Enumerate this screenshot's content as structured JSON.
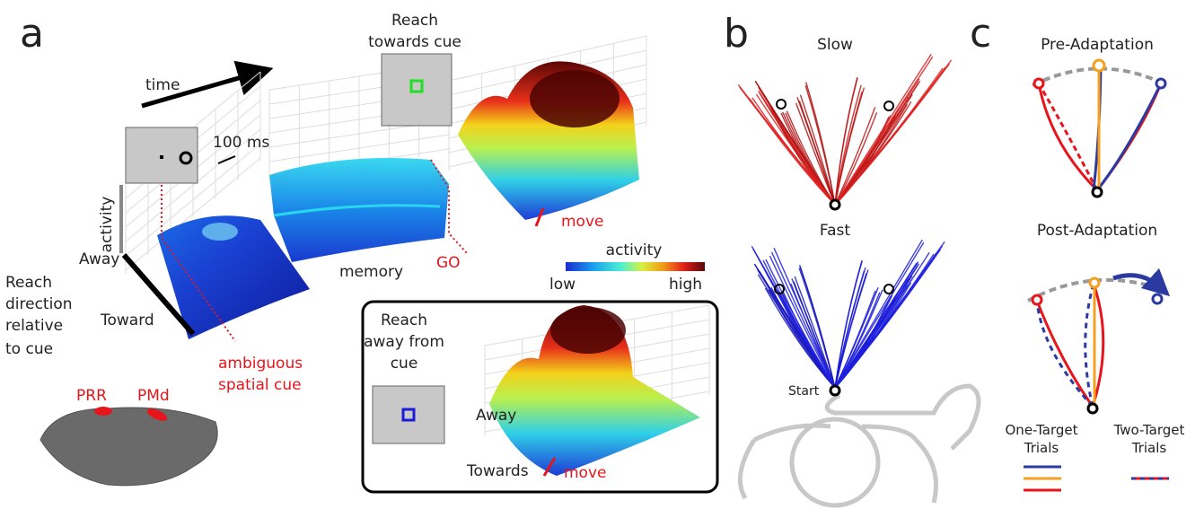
{
  "panels": {
    "a": {
      "label": "a",
      "time": "time",
      "scale": "100 ms",
      "activity_axis": "activity",
      "away": "Away",
      "toward": "Toward",
      "reach_direction": [
        "Reach",
        "direction",
        "relative",
        "to cue"
      ],
      "ambiguous": [
        "ambiguous",
        "spatial cue"
      ],
      "memory": "memory",
      "go": "GO",
      "towards_title": [
        "Reach",
        "towards cue"
      ],
      "move_top": "move",
      "colorbar": {
        "title": "activity",
        "low": "low",
        "high": "high"
      },
      "away_title": [
        "Reach",
        "away from",
        "cue"
      ],
      "away2": "Away",
      "towards2": "Towards",
      "move_bottom": "move",
      "prr": "PRR",
      "pmd": "PMd"
    },
    "b": {
      "label": "b",
      "slow": "Slow",
      "fast": "Fast",
      "start": "Start"
    },
    "c": {
      "label": "c",
      "pre": "Pre-Adaptation",
      "post": "Post-Adaptation",
      "one_target": [
        "One-Target",
        "Trials"
      ],
      "two_target": [
        "Two-Target",
        "Trials"
      ]
    }
  }
}
